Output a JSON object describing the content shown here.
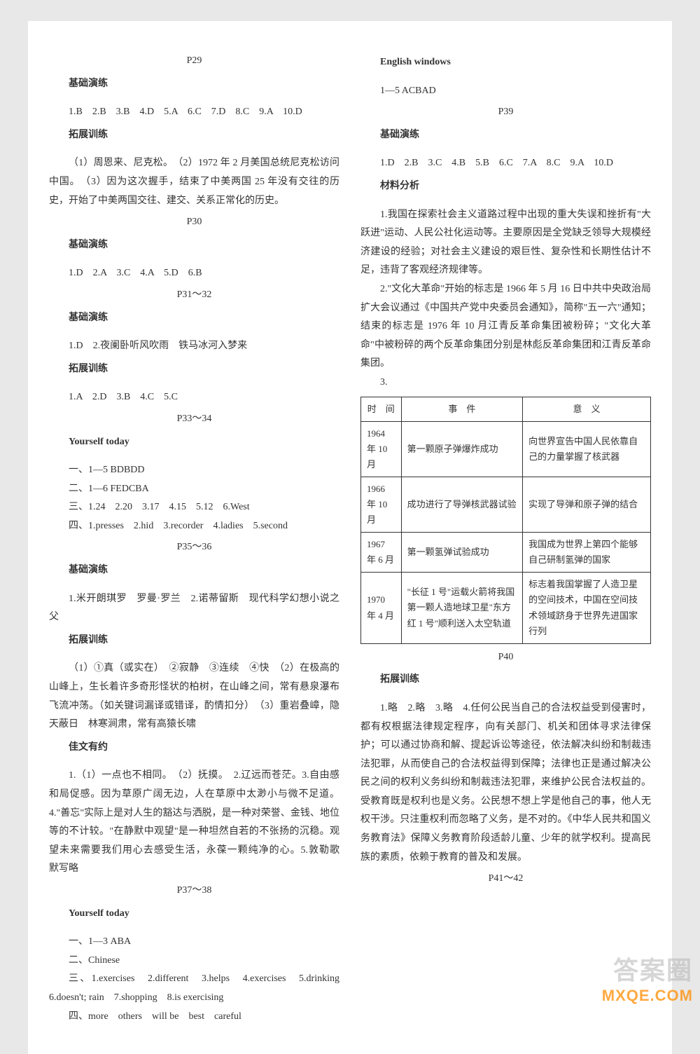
{
  "left": {
    "p29": "P29",
    "jichu": "基础演练",
    "p29_ans": "1.B　2.B　3.B　4.D　5.A　6.C　7.D　8.C　9.A　10.D",
    "tuozhan": "拓展训练",
    "p29_tuo": "（1）周恩来、尼克松。　（2）1972 年 2 月美国总统尼克松访问中国。　（3）因为这次握手，结束了中美两国 25 年没有交往的历史，开始了中美两国交往、建交、关系正常化的历史。",
    "p30": "P30",
    "p30_ans": "1.D　2.A　3.C　4.A　5.D　6.B",
    "p31": "P31～32",
    "p31_ans": "1.D　2.夜阑卧听风吹雨　铁马冰河入梦来",
    "p31_tuo": "1.A　2.D　3.B　4.C　5.C",
    "p33": "P33～34",
    "yourself": "Yourself today",
    "p33_1": "一、1—5  BDBDD",
    "p33_2": "二、1—6  FEDCBA",
    "p33_3": "三、1.24　2.20　3.17　4.15　5.12　6.West",
    "p33_4": "四、1.presses　2.hid　3.recorder　4.ladies　5.second",
    "p35": "P35～36",
    "p35_ans": "1.米开朗琪罗　罗曼·罗兰　2.诺蒂留斯　现代科学幻想小说之父",
    "p35_tuo": "（1）①真（或实在）　②寂静　③连续　④快　（2）在极高的山峰上，生长着许多奇形怪状的柏树，在山峰之间，常有悬泉瀑布飞流冲荡。（如关键词漏译或错译，酌情扣分）　（3）重岩叠嶂，隐天蔽日　林寒涧肃，常有高猿长啸",
    "jiawen": "佳文有约",
    "p35_jia": "1.（1）一点也不相同。　（2）抚摸。　2.辽远而苍茫。3.自由感和局促感。因为草原广阔无边，人在草原中太渺小与微不足道。4.\"善忘\"实际上是对人生的豁达与洒脱，是一种对荣誉、金钱、地位等的不计较。\"在静默中观望\"是一种坦然自若的不张扬的沉稳。观望未来需要我们用心去感受生活，永葆一颗纯净的心。5.敦勒歌　默写略",
    "p37": "P37～38",
    "p37_1": "一、1—3  ABA",
    "p37_2": "二、Chinese",
    "p37_3": "三、1.exercises　2.different　3.helps　4.exercises　5.drinking　6.doesn't; rain　7.shopping　8.is exercising",
    "p37_4": "四、more　others　will be　best　careful"
  },
  "right": {
    "engwin": "English windows",
    "engwin_ans": "1—5  ACBAD",
    "p39": "P39",
    "jichu": "基础演练",
    "p39_ans": "1.D　2.B　3.C　4.B　5.B　6.C　7.A　8.C　9.A　10.D",
    "cailiao": "材料分析",
    "p39_m1": "1.我国在探索社会主义道路过程中出现的重大失误和挫折有\"大跃进\"运动、人民公社化运动等。主要原因是全党缺乏领导大规模经济建设的经验；对社会主义建设的艰巨性、复杂性和长期性估计不足，违背了客观经济规律等。",
    "p39_m2": "2.\"文化大革命\"开始的标志是 1966 年 5 月 16 日中共中央政治局扩大会议通过《中国共产党中央委员会通知》，简称\"五一六\"通知；结束的标志是 1976 年 10 月江青反革命集团被粉碎；\"文化大革命\"中被粉碎的两个反革命集团分别是林彪反革命集团和江青反革命集团。",
    "p39_m3": "3.",
    "table": {
      "headers": [
        "时　间",
        "事　件",
        "意　义"
      ],
      "rows": [
        [
          "1964 年 10 月",
          "第一颗原子弹爆炸成功",
          "向世界宣告中国人民依靠自己的力量掌握了核武器"
        ],
        [
          "1966 年 10 月",
          "成功进行了导弹核武器试验",
          "实现了导弹和原子弹的结合"
        ],
        [
          "1967 年 6 月",
          "第一颗氢弹试验成功",
          "我国成为世界上第四个能够自己研制氢弹的国家"
        ],
        [
          "1970 年 4 月",
          "\"长征 1 号\"运载火箭将我国第一颗人造地球卫星\"东方红 1 号\"顺利送入太空轨道",
          "标志着我国掌握了人造卫星的空间技术，中国在空间技术领域跻身于世界先进国家行列"
        ]
      ]
    },
    "p40": "P40",
    "tuozhan": "拓展训练",
    "p40_tuo": "1.略　2.略　3.略　4.任何公民当自己的合法权益受到侵害时，都有权根据法律规定程序，向有关部门、机关和团体寻求法律保护；可以通过协商和解、提起诉讼等途径，依法解决纠纷和制裁违法犯罪，从而使自己的合法权益得到保障；法律也正是通过解决公民之间的权利义务纠纷和制裁违法犯罪，来维护公民合法权益的。受教育既是权利也是义务。公民想不想上学是他自己的事，他人无权干涉。只注重权利而忽略了义务，是不对的。《中华人民共和国义务教育法》保障义务教育阶段适龄儿童、少年的就学权利。提高民族的素质，依赖于教育的普及和发展。",
    "p41": "P41～42"
  },
  "watermark": {
    "line1": "答案圈",
    "line2": "MXQE.COM"
  }
}
